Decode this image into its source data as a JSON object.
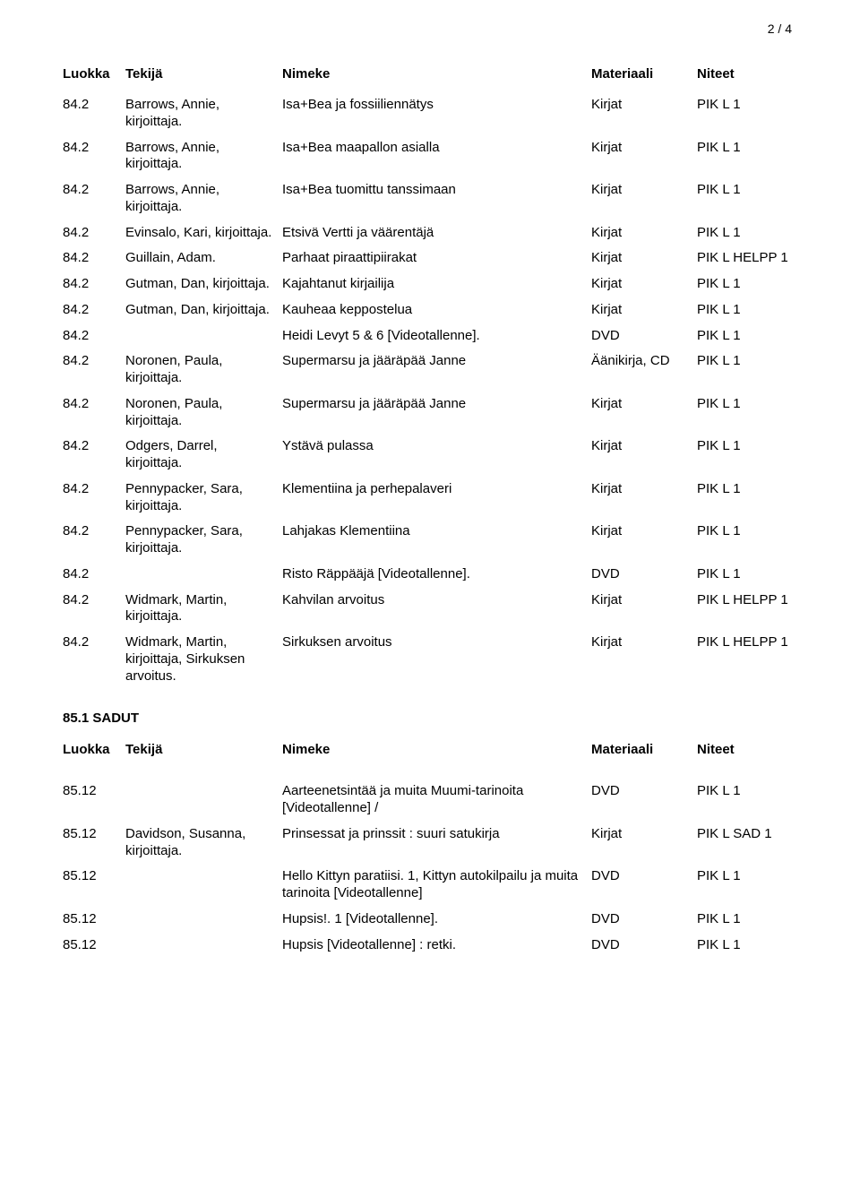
{
  "pageNumber": "2 / 4",
  "columns": {
    "luokka": "Luokka",
    "tekija": "Tekijä",
    "nimeke": "Nimeke",
    "materiaali": "Materiaali",
    "niteet": "Niteet"
  },
  "rows1": [
    {
      "luokka": "84.2",
      "tekija": "Barrows, Annie, kirjoittaja.",
      "nimeke": "Isa+Bea ja fossiiliennätys",
      "materiaali": "Kirjat",
      "niteet": "PIK L 1"
    },
    {
      "luokka": "84.2",
      "tekija": "Barrows, Annie, kirjoittaja.",
      "nimeke": "Isa+Bea maapallon asialla",
      "materiaali": "Kirjat",
      "niteet": "PIK L 1"
    },
    {
      "luokka": "84.2",
      "tekija": "Barrows, Annie, kirjoittaja.",
      "nimeke": "Isa+Bea tuomittu tanssimaan",
      "materiaali": "Kirjat",
      "niteet": "PIK L 1"
    },
    {
      "luokka": "84.2",
      "tekija": "Evinsalo, Kari, kirjoittaja.",
      "nimeke": "Etsivä Vertti ja väärentäjä",
      "materiaali": "Kirjat",
      "niteet": "PIK L 1"
    },
    {
      "luokka": "84.2",
      "tekija": "Guillain, Adam.",
      "nimeke": "Parhaat piraattipiirakat",
      "materiaali": "Kirjat",
      "niteet": "PIK L HELPP 1"
    },
    {
      "luokka": "84.2",
      "tekija": "Gutman, Dan, kirjoittaja.",
      "nimeke": "Kajahtanut kirjailija",
      "materiaali": "Kirjat",
      "niteet": "PIK L 1"
    },
    {
      "luokka": "84.2",
      "tekija": "Gutman, Dan, kirjoittaja.",
      "nimeke": "Kauheaa keppostelua",
      "materiaali": "Kirjat",
      "niteet": "PIK L 1"
    },
    {
      "luokka": "84.2",
      "tekija": "",
      "nimeke": "Heidi Levyt 5 & 6 [Videotallenne].",
      "materiaali": "DVD",
      "niteet": "PIK L 1"
    },
    {
      "luokka": "84.2",
      "tekija": "Noronen, Paula, kirjoittaja.",
      "nimeke": "Supermarsu ja jääräpää Janne",
      "materiaali": "Äänikirja, CD",
      "niteet": "PIK L 1"
    },
    {
      "luokka": "84.2",
      "tekija": "Noronen, Paula, kirjoittaja.",
      "nimeke": "Supermarsu ja jääräpää Janne",
      "materiaali": "Kirjat",
      "niteet": "PIK L 1"
    },
    {
      "luokka": "84.2",
      "tekija": "Odgers, Darrel, kirjoittaja.",
      "nimeke": "Ystävä pulassa",
      "materiaali": "Kirjat",
      "niteet": "PIK L 1"
    },
    {
      "luokka": "84.2",
      "tekija": "Pennypacker, Sara, kirjoittaja.",
      "nimeke": "Klementiina ja perhepalaveri",
      "materiaali": "Kirjat",
      "niteet": "PIK L 1"
    },
    {
      "luokka": "84.2",
      "tekija": "Pennypacker, Sara, kirjoittaja.",
      "nimeke": "Lahjakas Klementiina",
      "materiaali": "Kirjat",
      "niteet": "PIK L 1"
    },
    {
      "luokka": "84.2",
      "tekija": "",
      "nimeke": "Risto Räppääjä [Videotallenne].",
      "materiaali": "DVD",
      "niteet": "PIK L 1"
    },
    {
      "luokka": "84.2",
      "tekija": "Widmark, Martin, kirjoittaja.",
      "nimeke": "Kahvilan arvoitus",
      "materiaali": "Kirjat",
      "niteet": "PIK L HELPP 1"
    },
    {
      "luokka": "84.2",
      "tekija": "Widmark, Martin, kirjoittaja, Sirkuksen arvoitus.",
      "nimeke": "Sirkuksen arvoitus",
      "materiaali": "Kirjat",
      "niteet": "PIK L HELPP 1"
    }
  ],
  "sectionHeading": "85.1 SADUT",
  "rows2": [
    {
      "luokka": "85.12",
      "tekija": "",
      "nimeke": "Aarteenetsintää ja muita Muumi-tarinoita [Videotallenne] /",
      "materiaali": "DVD",
      "niteet": "PIK L 1"
    },
    {
      "luokka": "85.12",
      "tekija": "Davidson, Susanna, kirjoittaja.",
      "nimeke": "Prinsessat ja prinssit : suuri satukirja",
      "materiaali": "Kirjat",
      "niteet": "PIK L SAD 1"
    },
    {
      "luokka": "85.12",
      "tekija": "",
      "nimeke": "Hello Kittyn paratiisi. 1, Kittyn autokilpailu ja muita tarinoita [Videotallenne]",
      "materiaali": "DVD",
      "niteet": "PIK L 1"
    },
    {
      "luokka": "85.12",
      "tekija": "",
      "nimeke": "Hupsis!. 1 [Videotallenne].",
      "materiaali": "DVD",
      "niteet": "PIK L 1"
    },
    {
      "luokka": "85.12",
      "tekija": "",
      "nimeke": "Hupsis [Videotallenne] : retki.",
      "materiaali": "DVD",
      "niteet": "PIK L 1"
    }
  ],
  "style": {
    "textColor": "#000000",
    "backgroundColor": "#ffffff",
    "fontFamily": "Arial, Helvetica, sans-serif",
    "fontSize": 15,
    "headerFontWeight": "bold"
  }
}
